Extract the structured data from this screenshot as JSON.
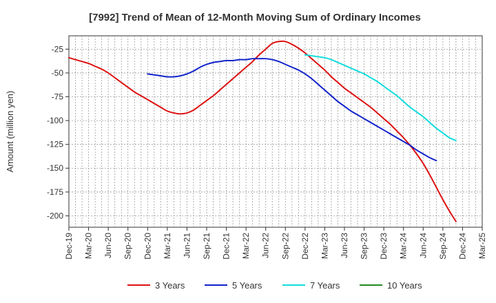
{
  "chart_data": {
    "type": "line",
    "title": "[7992]  Trend of Mean of 12-Month Moving Sum of Ordinary Incomes",
    "xlabel": "",
    "ylabel": "Amount (million yen)",
    "ylim": [
      -212,
      -11
    ],
    "yticks": [
      -25,
      -50,
      -75,
      -100,
      -125,
      -150,
      -175,
      -200
    ],
    "x_tick_labels": [
      "Dec-19",
      "Mar-20",
      "Jun-20",
      "Sep-20",
      "Dec-20",
      "Mar-21",
      "Jun-21",
      "Sep-21",
      "Dec-21",
      "Mar-22",
      "Jun-22",
      "Sep-22",
      "Dec-22",
      "Mar-23",
      "Jun-23",
      "Sep-23",
      "Dec-23",
      "Mar-24",
      "Jun-24",
      "Sep-24",
      "Dec-24",
      "Mar-25"
    ],
    "grid": true,
    "legend_position": "bottom",
    "series": [
      {
        "name": "3 Years",
        "color": "#dd1111",
        "start_index": 0,
        "values": [
          -34,
          -36,
          -38,
          -40,
          -43,
          -46,
          -50,
          -55,
          -60,
          -65,
          -70,
          -74,
          -78,
          -82,
          -86,
          -90,
          -92,
          -93,
          -92,
          -89,
          -84,
          -79,
          -74,
          -68,
          -62,
          -56,
          -50,
          -44,
          -38,
          -31,
          -25,
          -19,
          -17,
          -17,
          -20,
          -24,
          -29,
          -35,
          -41,
          -47,
          -54,
          -60,
          -66,
          -71,
          -76,
          -81,
          -86,
          -92,
          -98,
          -104,
          -111,
          -118,
          -126,
          -135,
          -145,
          -157,
          -170,
          -183,
          -195,
          -206
        ]
      },
      {
        "name": "5 Years",
        "color": "#1122cc",
        "start_index": 12,
        "values": [
          -51,
          -52,
          -53,
          -54,
          -54,
          -53,
          -51,
          -48,
          -44,
          -41,
          -39,
          -38,
          -37,
          -37,
          -36,
          -36,
          -35,
          -35,
          -35,
          -36,
          -38,
          -41,
          -44,
          -47,
          -51,
          -56,
          -62,
          -68,
          -74,
          -80,
          -85,
          -90,
          -94,
          -98,
          -102,
          -106,
          -110,
          -114,
          -118,
          -122,
          -126,
          -131,
          -135,
          -139,
          -142
        ]
      },
      {
        "name": "7 Years",
        "color": "#11dddd",
        "start_index": 36,
        "values": [
          -31,
          -32,
          -33,
          -34,
          -36,
          -39,
          -42,
          -45,
          -48,
          -51,
          -55,
          -59,
          -64,
          -69,
          -74,
          -80,
          -86,
          -91,
          -96,
          -102,
          -108,
          -113,
          -118,
          -121
        ]
      },
      {
        "name": "10 Years",
        "color": "#228822",
        "start_index": 0,
        "values": []
      }
    ]
  }
}
